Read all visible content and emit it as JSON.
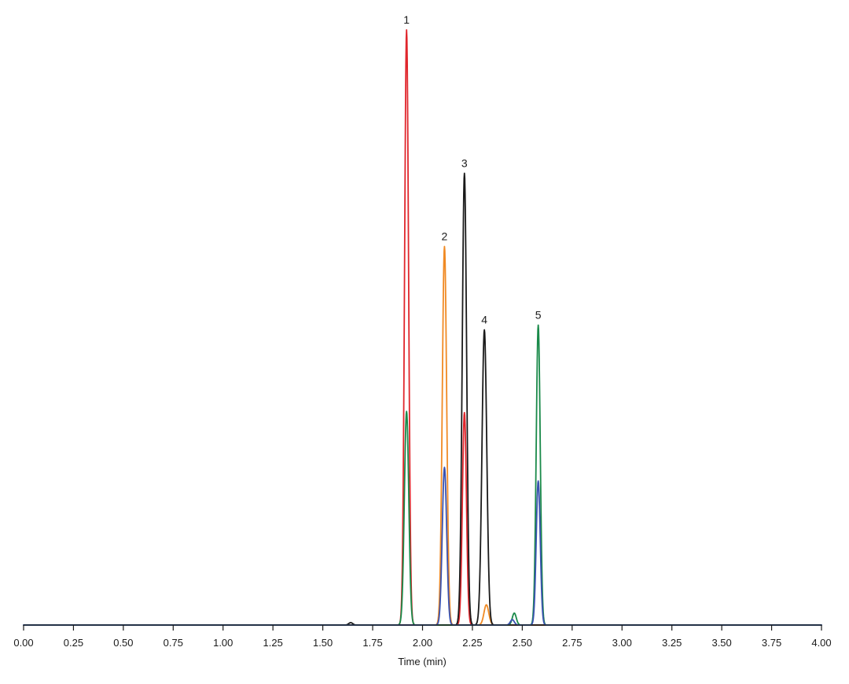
{
  "chart_data": {
    "type": "line",
    "xlabel": "Time (min)",
    "ylabel": "",
    "title": "",
    "xlim": [
      0.0,
      4.0
    ],
    "ylim": [
      0,
      100
    ],
    "grid": false,
    "x_ticks": [
      "0.00",
      "0.25",
      "0.50",
      "0.75",
      "1.00",
      "1.25",
      "1.50",
      "1.75",
      "2.00",
      "2.25",
      "2.50",
      "2.75",
      "3.00",
      "3.25",
      "3.50",
      "3.75",
      "4.00"
    ],
    "peak_labels": [
      {
        "text": "1",
        "x": 1.92,
        "y": 100
      },
      {
        "text": "2",
        "x": 2.11,
        "y": 63.6
      },
      {
        "text": "3",
        "x": 2.21,
        "y": 75.9
      },
      {
        "text": "4",
        "x": 2.31,
        "y": 49.6
      },
      {
        "text": "5",
        "x": 2.58,
        "y": 50.4
      }
    ],
    "series": [
      {
        "color": "#e0262c",
        "peaks": [
          {
            "x": 1.92,
            "height": 100,
            "width": 0.01
          },
          {
            "x": 2.21,
            "height": 35.7,
            "width": 0.01
          }
        ]
      },
      {
        "color": "#f08a24",
        "peaks": [
          {
            "x": 2.11,
            "height": 63.6,
            "width": 0.011
          },
          {
            "x": 2.32,
            "height": 3.4,
            "width": 0.012
          }
        ]
      },
      {
        "color": "#1a1a1a",
        "peaks": [
          {
            "x": 1.64,
            "height": 0.4,
            "width": 0.01
          },
          {
            "x": 2.21,
            "height": 75.9,
            "width": 0.011
          },
          {
            "x": 2.31,
            "height": 49.6,
            "width": 0.012
          }
        ]
      },
      {
        "color": "#1a8a4a",
        "peaks": [
          {
            "x": 1.92,
            "height": 35.9,
            "width": 0.011
          },
          {
            "x": 2.46,
            "height": 2.0,
            "width": 0.01
          },
          {
            "x": 2.58,
            "height": 50.4,
            "width": 0.01
          }
        ]
      },
      {
        "color": "#3a52b0",
        "peaks": [
          {
            "x": 2.11,
            "height": 26.5,
            "width": 0.011
          },
          {
            "x": 2.45,
            "height": 0.9,
            "width": 0.01
          },
          {
            "x": 2.58,
            "height": 24.2,
            "width": 0.01
          }
        ]
      }
    ]
  }
}
